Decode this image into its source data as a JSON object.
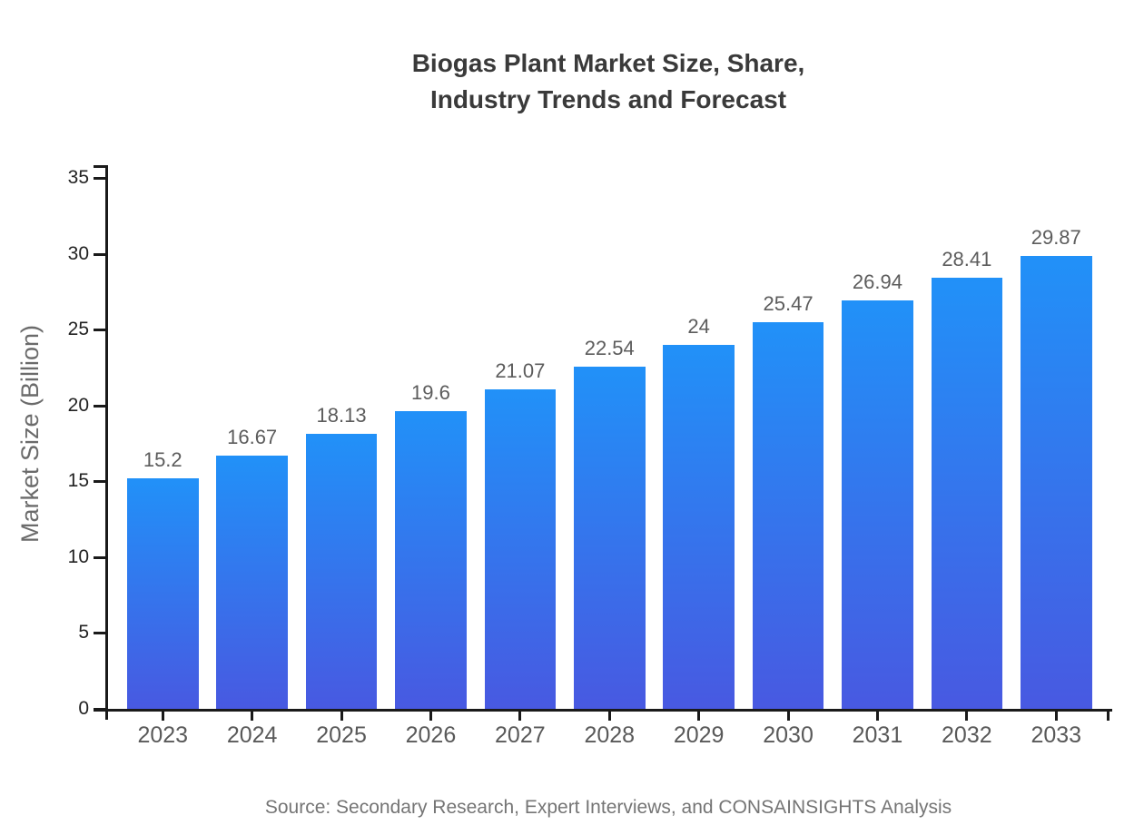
{
  "page": {
    "background_color": "#ffffff"
  },
  "chart_data": {
    "type": "bar",
    "title": "Biogas Plant Market Size, Share, Industry Trends and Forecast",
    "title_lines": [
      "Biogas Plant Market Size, Share,",
      "Industry Trends and Forecast"
    ],
    "xlabel": "",
    "ylabel": "Market Size (Billion)",
    "categories": [
      "2023",
      "2024",
      "2025",
      "2026",
      "2027",
      "2028",
      "2029",
      "2030",
      "2031",
      "2032",
      "2033"
    ],
    "values": [
      15.2,
      16.67,
      18.13,
      19.6,
      21.07,
      22.54,
      24,
      25.47,
      26.94,
      28.41,
      29.87
    ],
    "value_labels": [
      "15.2",
      "16.67",
      "18.13",
      "19.6",
      "21.07",
      "22.54",
      "24",
      "25.47",
      "26.94",
      "28.41",
      "29.87"
    ],
    "ylim": [
      0,
      35
    ],
    "yticks": [
      0,
      5,
      10,
      15,
      20,
      25,
      30,
      35
    ],
    "grid": false,
    "legend_position": "none",
    "colors": {
      "bar_gradient_top": "#2191f8",
      "bar_gradient_bottom": "#4859e1",
      "axis": "#1a1a1a",
      "title_text": "#3a3a3a",
      "ytick_text": "#222222",
      "category_text": "#595959",
      "value_text": "#5c5c5c",
      "ylabel_text": "#6b6b6b",
      "source_text": "#757575"
    },
    "source": "Source: Secondary Research, Expert Interviews, and CONSAINSIGHTS Analysis"
  }
}
